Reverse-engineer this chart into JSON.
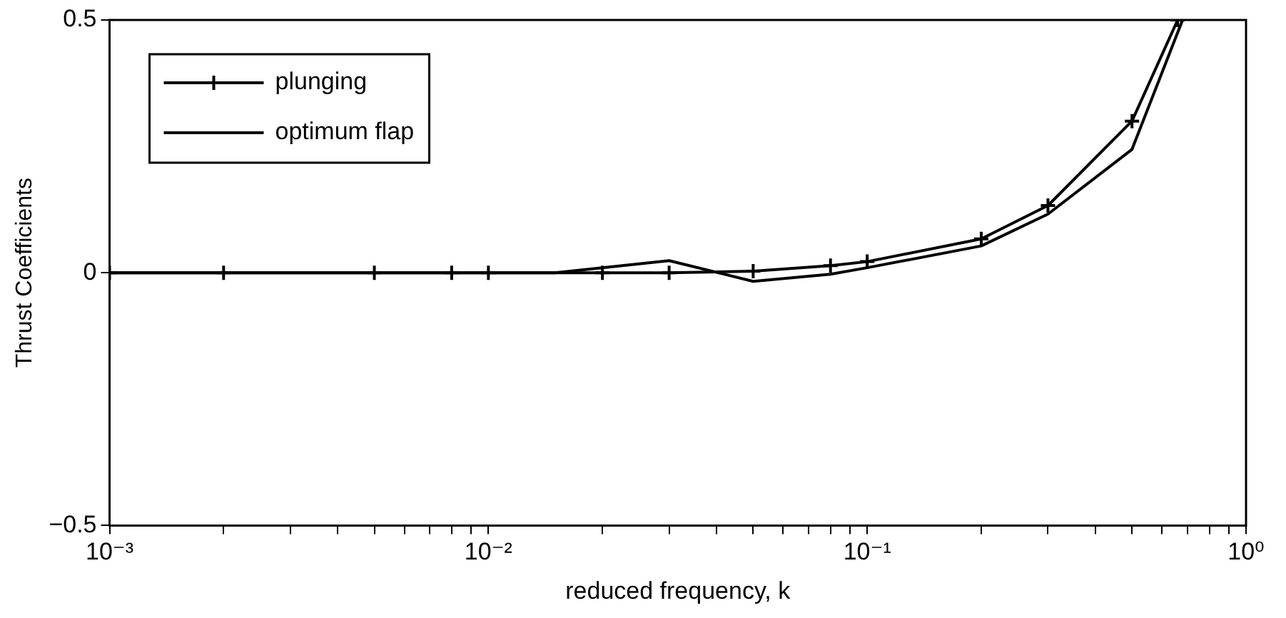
{
  "chart_data": {
    "type": "line",
    "xlabel": "reduced frequency, k",
    "ylabel": "Thrust Coefficients",
    "log": "x",
    "xlim": [
      0.001,
      1
    ],
    "ylim": [
      -0.5,
      0.5
    ],
    "xticks": [
      {
        "value": 0.001,
        "label": "10⁻³"
      },
      {
        "value": 0.002,
        "label": null
      },
      {
        "value": 0.003,
        "label": null
      },
      {
        "value": 0.004,
        "label": null
      },
      {
        "value": 0.005,
        "label": null
      },
      {
        "value": 0.006,
        "label": null
      },
      {
        "value": 0.007,
        "label": null
      },
      {
        "value": 0.008,
        "label": null
      },
      {
        "value": 0.009,
        "label": null
      },
      {
        "value": 0.01,
        "label": "10⁻²"
      },
      {
        "value": 0.02,
        "label": null
      },
      {
        "value": 0.03,
        "label": null
      },
      {
        "value": 0.04,
        "label": null
      },
      {
        "value": 0.05,
        "label": null
      },
      {
        "value": 0.06,
        "label": null
      },
      {
        "value": 0.07,
        "label": null
      },
      {
        "value": 0.08,
        "label": null
      },
      {
        "value": 0.09,
        "label": null
      },
      {
        "value": 0.1,
        "label": "10⁻¹"
      },
      {
        "value": 0.2,
        "label": null
      },
      {
        "value": 0.3,
        "label": null
      },
      {
        "value": 0.4,
        "label": null
      },
      {
        "value": 0.5,
        "label": null
      },
      {
        "value": 0.6,
        "label": null
      },
      {
        "value": 0.7,
        "label": null
      },
      {
        "value": 0.8,
        "label": null
      },
      {
        "value": 0.9,
        "label": null
      },
      {
        "value": 1,
        "label": "10⁰"
      }
    ],
    "yticks": [
      {
        "value": -0.5,
        "label": "−0.5"
      },
      0,
      0.5
    ],
    "grid": false,
    "legend": "top left",
    "line_style": "solid",
    "series": [
      {
        "name": "plunging",
        "color": "#000000",
        "marker": "cross",
        "x": [
          0.001,
          0.002,
          0.005,
          0.008,
          0.01,
          0.02,
          0.03,
          0.05,
          0.08,
          0.1,
          0.2,
          0.3,
          0.5,
          0.66
        ],
        "values": [
          0,
          0,
          0,
          0,
          0,
          0,
          0,
          0.003,
          0.014,
          0.022,
          0.067,
          0.133,
          0.3,
          0.5
        ]
      },
      {
        "name": "optimum flap",
        "color": "#000000",
        "marker": "none",
        "x": [
          0.001,
          0.002,
          0.005,
          0.008,
          0.01,
          0.015,
          0.03,
          0.05,
          0.08,
          0.1,
          0.2,
          0.3,
          0.5,
          0.68
        ],
        "values": [
          0,
          0,
          0,
          0,
          0,
          0,
          0.024,
          -0.017,
          -0.003,
          0.01,
          0.053,
          0.116,
          0.244,
          0.5
        ]
      }
    ]
  }
}
